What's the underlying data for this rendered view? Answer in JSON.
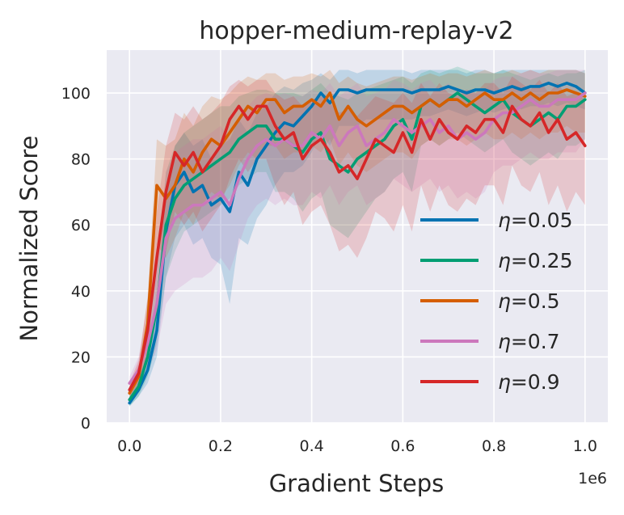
{
  "chart_data": {
    "type": "line",
    "title": "hopper-medium-replay-v2",
    "xlabel": "Gradient Steps",
    "ylabel": "Normalized Score",
    "x_offset_label": "1e6",
    "xlim": [
      -0.05,
      1.05
    ],
    "ylim": [
      0,
      113
    ],
    "xticks": [
      0.0,
      0.2,
      0.4,
      0.6,
      0.8,
      1.0
    ],
    "xtick_labels": [
      "0.0",
      "0.2",
      "0.4",
      "0.6",
      "0.8",
      "1.0"
    ],
    "yticks": [
      0,
      20,
      40,
      60,
      80,
      100
    ],
    "ytick_labels": [
      "0",
      "20",
      "40",
      "60",
      "80",
      "100"
    ],
    "grid": true,
    "legend_position": "lower-right",
    "x": [
      0.0,
      0.02,
      0.04,
      0.06,
      0.08,
      0.1,
      0.12,
      0.14,
      0.16,
      0.18,
      0.2,
      0.22,
      0.24,
      0.26,
      0.28,
      0.3,
      0.32,
      0.34,
      0.36,
      0.38,
      0.4,
      0.42,
      0.44,
      0.46,
      0.48,
      0.5,
      0.52,
      0.54,
      0.56,
      0.58,
      0.6,
      0.62,
      0.64,
      0.66,
      0.68,
      0.7,
      0.72,
      0.74,
      0.76,
      0.78,
      0.8,
      0.82,
      0.84,
      0.86,
      0.88,
      0.9,
      0.92,
      0.94,
      0.96,
      0.98,
      1.0
    ],
    "series": [
      {
        "name": "η=0.05",
        "label_prefix": "η",
        "label_value": "=0.05",
        "color": "#0173b2",
        "values": [
          6,
          10,
          16,
          28,
          58,
          72,
          76,
          70,
          72,
          66,
          68,
          64,
          76,
          72,
          80,
          84,
          88,
          91,
          90,
          93,
          96,
          100,
          97,
          101,
          101,
          100,
          101,
          101,
          101,
          101,
          101,
          100,
          101,
          101,
          101,
          102,
          101,
          100,
          101,
          101,
          100,
          101,
          102,
          101,
          102,
          102,
          103,
          102,
          103,
          102,
          100
        ],
        "lower": [
          5,
          8,
          12,
          20,
          44,
          56,
          60,
          54,
          56,
          50,
          48,
          36,
          56,
          54,
          62,
          66,
          72,
          76,
          76,
          78,
          82,
          88,
          84,
          90,
          90,
          90,
          92,
          92,
          92,
          92,
          92,
          92,
          93,
          93,
          94,
          95,
          94,
          93,
          94,
          95,
          94,
          95,
          96,
          95,
          96,
          96,
          97,
          96,
          97,
          96,
          95
        ],
        "upper": [
          8,
          13,
          22,
          38,
          70,
          84,
          88,
          84,
          86,
          80,
          84,
          86,
          92,
          88,
          94,
          96,
          100,
          102,
          101,
          103,
          104,
          106,
          104,
          107,
          107,
          106,
          107,
          107,
          107,
          107,
          107,
          106,
          107,
          107,
          107,
          107,
          107,
          106,
          107,
          107,
          106,
          107,
          107,
          107,
          107,
          107,
          107,
          107,
          107,
          107,
          106
        ]
      },
      {
        "name": "η=0.25",
        "label_prefix": "η",
        "label_value": "=0.25",
        "color": "#029e73",
        "values": [
          7,
          11,
          20,
          35,
          60,
          68,
          72,
          74,
          76,
          78,
          80,
          82,
          86,
          88,
          90,
          90,
          86,
          86,
          84,
          82,
          86,
          88,
          80,
          78,
          76,
          80,
          82,
          84,
          86,
          90,
          92,
          86,
          96,
          98,
          96,
          98,
          100,
          98,
          96,
          94,
          96,
          98,
          94,
          92,
          90,
          92,
          94,
          92,
          96,
          96,
          98
        ],
        "lower": [
          5,
          8,
          14,
          24,
          44,
          52,
          58,
          60,
          62,
          64,
          66,
          68,
          72,
          74,
          76,
          76,
          70,
          70,
          68,
          64,
          68,
          70,
          60,
          58,
          56,
          60,
          64,
          68,
          70,
          74,
          76,
          70,
          84,
          86,
          84,
          86,
          88,
          86,
          84,
          82,
          84,
          86,
          82,
          80,
          78,
          80,
          82,
          80,
          84,
          84,
          86
        ],
        "upper": [
          10,
          14,
          26,
          46,
          76,
          84,
          88,
          90,
          92,
          94,
          96,
          96,
          99,
          100,
          101,
          101,
          100,
          100,
          100,
          99,
          101,
          103,
          100,
          99,
          98,
          100,
          101,
          102,
          103,
          104,
          105,
          103,
          106,
          107,
          106,
          107,
          108,
          107,
          106,
          106,
          106,
          107,
          106,
          105,
          104,
          105,
          106,
          105,
          106,
          106,
          107
        ]
      },
      {
        "name": "η=0.5",
        "label_prefix": "η",
        "label_value": "=0.5",
        "color": "#d55e00",
        "values": [
          9,
          14,
          30,
          72,
          68,
          72,
          80,
          76,
          82,
          86,
          84,
          88,
          92,
          96,
          94,
          98,
          98,
          94,
          96,
          96,
          98,
          96,
          100,
          92,
          96,
          92,
          90,
          92,
          94,
          96,
          96,
          94,
          96,
          98,
          96,
          98,
          98,
          96,
          98,
          100,
          98,
          98,
          100,
          98,
          100,
          98,
          100,
          100,
          101,
          100,
          99
        ],
        "lower": [
          7,
          10,
          22,
          54,
          50,
          56,
          64,
          60,
          66,
          70,
          68,
          72,
          78,
          82,
          80,
          84,
          84,
          80,
          82,
          82,
          84,
          82,
          86,
          78,
          82,
          78,
          76,
          78,
          80,
          82,
          82,
          80,
          84,
          86,
          84,
          86,
          86,
          84,
          86,
          88,
          86,
          86,
          88,
          86,
          88,
          86,
          88,
          88,
          90,
          88,
          88
        ],
        "upper": [
          11,
          18,
          38,
          86,
          84,
          86,
          94,
          90,
          96,
          99,
          98,
          100,
          103,
          105,
          104,
          106,
          106,
          104,
          105,
          105,
          106,
          105,
          107,
          103,
          105,
          103,
          102,
          103,
          104,
          105,
          105,
          104,
          105,
          106,
          105,
          106,
          106,
          105,
          106,
          107,
          106,
          106,
          107,
          106,
          107,
          106,
          107,
          107,
          107,
          107,
          106
        ]
      },
      {
        "name": "η=0.7",
        "label_prefix": "η",
        "label_value": "=0.7",
        "color": "#cc78bc",
        "values": [
          12,
          16,
          24,
          36,
          56,
          62,
          64,
          66,
          66,
          68,
          70,
          66,
          74,
          80,
          84,
          86,
          84,
          86,
          84,
          84,
          88,
          86,
          90,
          84,
          88,
          90,
          84,
          86,
          88,
          92,
          90,
          88,
          90,
          92,
          88,
          90,
          86,
          88,
          86,
          88,
          92,
          94,
          94,
          96,
          98,
          96,
          96,
          98,
          98,
          98,
          100
        ],
        "lower": [
          9,
          12,
          16,
          22,
          36,
          40,
          42,
          44,
          44,
          46,
          50,
          46,
          54,
          62,
          66,
          68,
          66,
          68,
          66,
          66,
          70,
          68,
          72,
          66,
          70,
          72,
          66,
          68,
          70,
          74,
          72,
          70,
          72,
          74,
          70,
          72,
          68,
          70,
          68,
          70,
          76,
          78,
          78,
          80,
          82,
          80,
          80,
          82,
          82,
          82,
          86
        ],
        "upper": [
          14,
          20,
          32,
          50,
          76,
          82,
          84,
          86,
          86,
          88,
          90,
          86,
          92,
          96,
          99,
          100,
          99,
          100,
          99,
          99,
          101,
          100,
          103,
          99,
          101,
          103,
          99,
          100,
          101,
          104,
          103,
          101,
          103,
          104,
          101,
          103,
          100,
          101,
          100,
          101,
          104,
          105,
          105,
          106,
          107,
          106,
          106,
          107,
          107,
          107,
          107
        ]
      },
      {
        "name": "η=0.9",
        "label_prefix": "η",
        "label_value": "=0.9",
        "color": "#d62728",
        "values": [
          10,
          15,
          28,
          50,
          70,
          82,
          78,
          82,
          76,
          80,
          84,
          92,
          96,
          92,
          96,
          96,
          90,
          86,
          88,
          80,
          84,
          86,
          82,
          76,
          78,
          74,
          80,
          86,
          84,
          82,
          88,
          82,
          92,
          86,
          92,
          88,
          86,
          90,
          88,
          92,
          92,
          88,
          96,
          92,
          90,
          94,
          88,
          92,
          86,
          88,
          84
        ],
        "lower": [
          8,
          11,
          18,
          34,
          52,
          64,
          60,
          64,
          58,
          62,
          66,
          74,
          80,
          76,
          80,
          80,
          72,
          66,
          70,
          60,
          64,
          66,
          60,
          52,
          54,
          50,
          56,
          64,
          62,
          58,
          66,
          58,
          72,
          64,
          72,
          66,
          64,
          68,
          66,
          72,
          72,
          66,
          78,
          72,
          70,
          76,
          66,
          72,
          64,
          70,
          66
        ],
        "upper": [
          12,
          19,
          38,
          64,
          84,
          94,
          92,
          96,
          92,
          94,
          97,
          102,
          104,
          102,
          104,
          104,
          100,
          98,
          99,
          96,
          98,
          99,
          97,
          94,
          95,
          93,
          96,
          99,
          98,
          97,
          100,
          97,
          103,
          99,
          103,
          100,
          99,
          101,
          100,
          103,
          103,
          100,
          105,
          103,
          101,
          104,
          100,
          103,
          99,
          100,
          98
        ]
      }
    ]
  }
}
